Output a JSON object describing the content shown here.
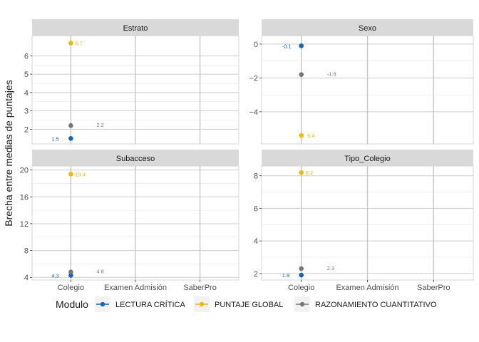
{
  "chart_data": {
    "type": "scatter",
    "title": "",
    "ylabel": "Brecha entre medias de puntajes",
    "xlabel": "",
    "categories": [
      "Colegio",
      "Examen Admisión",
      "SaberPro"
    ],
    "legend": {
      "title": "Modulo",
      "position": "bottom",
      "entries": [
        "LECTURA CRÍTICA",
        "PUNTAJE GLOBAL",
        "RAZONAMIENTO CUANTITATIVO"
      ]
    },
    "colors": {
      "LECTURA CRÍTICA": "#1565c0",
      "PUNTAJE GLOBAL": "#f5b800",
      "RAZONAMIENTO CUANTITATIVO": "#777777"
    },
    "panels": [
      {
        "name": "Estrato",
        "ylim": [
          1.2,
          7.1
        ],
        "yticks": [
          2,
          3,
          4,
          5,
          6
        ],
        "ytick_labels": [
          "2",
          "3",
          "4",
          "5",
          "6"
        ],
        "points": [
          {
            "series": "LECTURA CRÍTICA",
            "category": "Colegio",
            "value": 1.5,
            "label": "1.5"
          },
          {
            "series": "PUNTAJE GLOBAL",
            "category": "Colegio",
            "value": 6.7,
            "label": "6.7"
          },
          {
            "series": "RAZONAMIENTO CUANTITATIVO",
            "category": "Colegio",
            "value": 2.2,
            "label": "2.2"
          }
        ]
      },
      {
        "name": "Sexo",
        "ylim": [
          -5.9,
          0.5
        ],
        "yticks": [
          0,
          -2,
          -4
        ],
        "ytick_labels": [
          "0",
          "−2",
          "−4"
        ],
        "points": [
          {
            "series": "LECTURA CRÍTICA",
            "category": "Colegio",
            "value": -0.1,
            "label": "-0.1"
          },
          {
            "series": "PUNTAJE GLOBAL",
            "category": "Colegio",
            "value": -5.4,
            "label": "-5.4"
          },
          {
            "series": "RAZONAMIENTO CUANTITATIVO",
            "category": "Colegio",
            "value": -1.8,
            "label": "-1.8"
          }
        ]
      },
      {
        "name": "Subacceso",
        "ylim": [
          3.6,
          20.6
        ],
        "yticks": [
          4,
          8,
          12,
          16,
          20
        ],
        "ytick_labels": [
          "4",
          "8",
          "12",
          "16",
          "20"
        ],
        "points": [
          {
            "series": "LECTURA CRÍTICA",
            "category": "Colegio",
            "value": 4.3,
            "label": "4.3"
          },
          {
            "series": "PUNTAJE GLOBAL",
            "category": "Colegio",
            "value": 19.4,
            "label": "19.4"
          },
          {
            "series": "RAZONAMIENTO CUANTITATIVO",
            "category": "Colegio",
            "value": 4.8,
            "label": "4.8"
          }
        ]
      },
      {
        "name": "Tipo_Colegio",
        "ylim": [
          1.6,
          8.6
        ],
        "yticks": [
          2,
          4,
          6,
          8
        ],
        "ytick_labels": [
          "2",
          "4",
          "6",
          "8"
        ],
        "points": [
          {
            "series": "LECTURA CRÍTICA",
            "category": "Colegio",
            "value": 1.9,
            "label": "1.9"
          },
          {
            "series": "PUNTAJE GLOBAL",
            "category": "Colegio",
            "value": 8.2,
            "label": "8.2"
          },
          {
            "series": "RAZONAMIENTO CUANTITATIVO",
            "category": "Colegio",
            "value": 2.3,
            "label": "2.3"
          }
        ]
      }
    ]
  }
}
